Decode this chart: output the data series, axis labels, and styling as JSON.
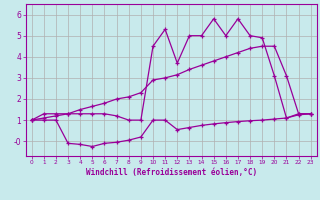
{
  "background_color": "#c8eaec",
  "grid_color": "#b0b0b0",
  "line_color": "#990099",
  "xlabel": "Windchill (Refroidissement éolien,°C)",
  "xlim": [
    -0.5,
    23.5
  ],
  "ylim": [
    -0.7,
    6.5
  ],
  "xticks": [
    0,
    1,
    2,
    3,
    4,
    5,
    6,
    7,
    8,
    9,
    10,
    11,
    12,
    13,
    14,
    15,
    16,
    17,
    18,
    19,
    20,
    21,
    22,
    23
  ],
  "yticks": [
    0,
    1,
    2,
    3,
    4,
    5,
    6
  ],
  "ytick_labels": [
    "-0",
    "1",
    "2",
    "3",
    "4",
    "5",
    "6"
  ],
  "line1_x": [
    0,
    1,
    2,
    3,
    4,
    5,
    6,
    7,
    8,
    9,
    10,
    11,
    12,
    13,
    14,
    15,
    16,
    17,
    18,
    19,
    20,
    21,
    22,
    23
  ],
  "line1_y": [
    1.0,
    1.3,
    1.3,
    1.3,
    1.3,
    1.3,
    1.3,
    1.2,
    1.0,
    1.0,
    4.5,
    5.3,
    3.7,
    5.0,
    5.0,
    5.8,
    5.0,
    5.8,
    5.0,
    4.9,
    3.1,
    1.1,
    1.3,
    1.3
  ],
  "line2_x": [
    0,
    1,
    2,
    3,
    4,
    5,
    6,
    7,
    8,
    9,
    10,
    11,
    12,
    13,
    14,
    15,
    16,
    17,
    18,
    19,
    20,
    21,
    22,
    23
  ],
  "line2_y": [
    1.0,
    1.1,
    1.2,
    1.3,
    1.5,
    1.65,
    1.8,
    2.0,
    2.1,
    2.3,
    2.9,
    3.0,
    3.15,
    3.4,
    3.6,
    3.8,
    4.0,
    4.2,
    4.4,
    4.5,
    4.5,
    3.1,
    1.3,
    1.3
  ],
  "line3_x": [
    0,
    1,
    2,
    3,
    4,
    5,
    6,
    7,
    8,
    9,
    10,
    11,
    12,
    13,
    14,
    15,
    16,
    17,
    18,
    19,
    20,
    21,
    22,
    23
  ],
  "line3_y": [
    1.0,
    1.0,
    1.0,
    -0.1,
    -0.15,
    -0.25,
    -0.1,
    -0.05,
    0.05,
    0.2,
    1.0,
    1.0,
    0.55,
    0.65,
    0.75,
    0.82,
    0.88,
    0.93,
    0.97,
    1.0,
    1.05,
    1.1,
    1.25,
    1.3
  ]
}
